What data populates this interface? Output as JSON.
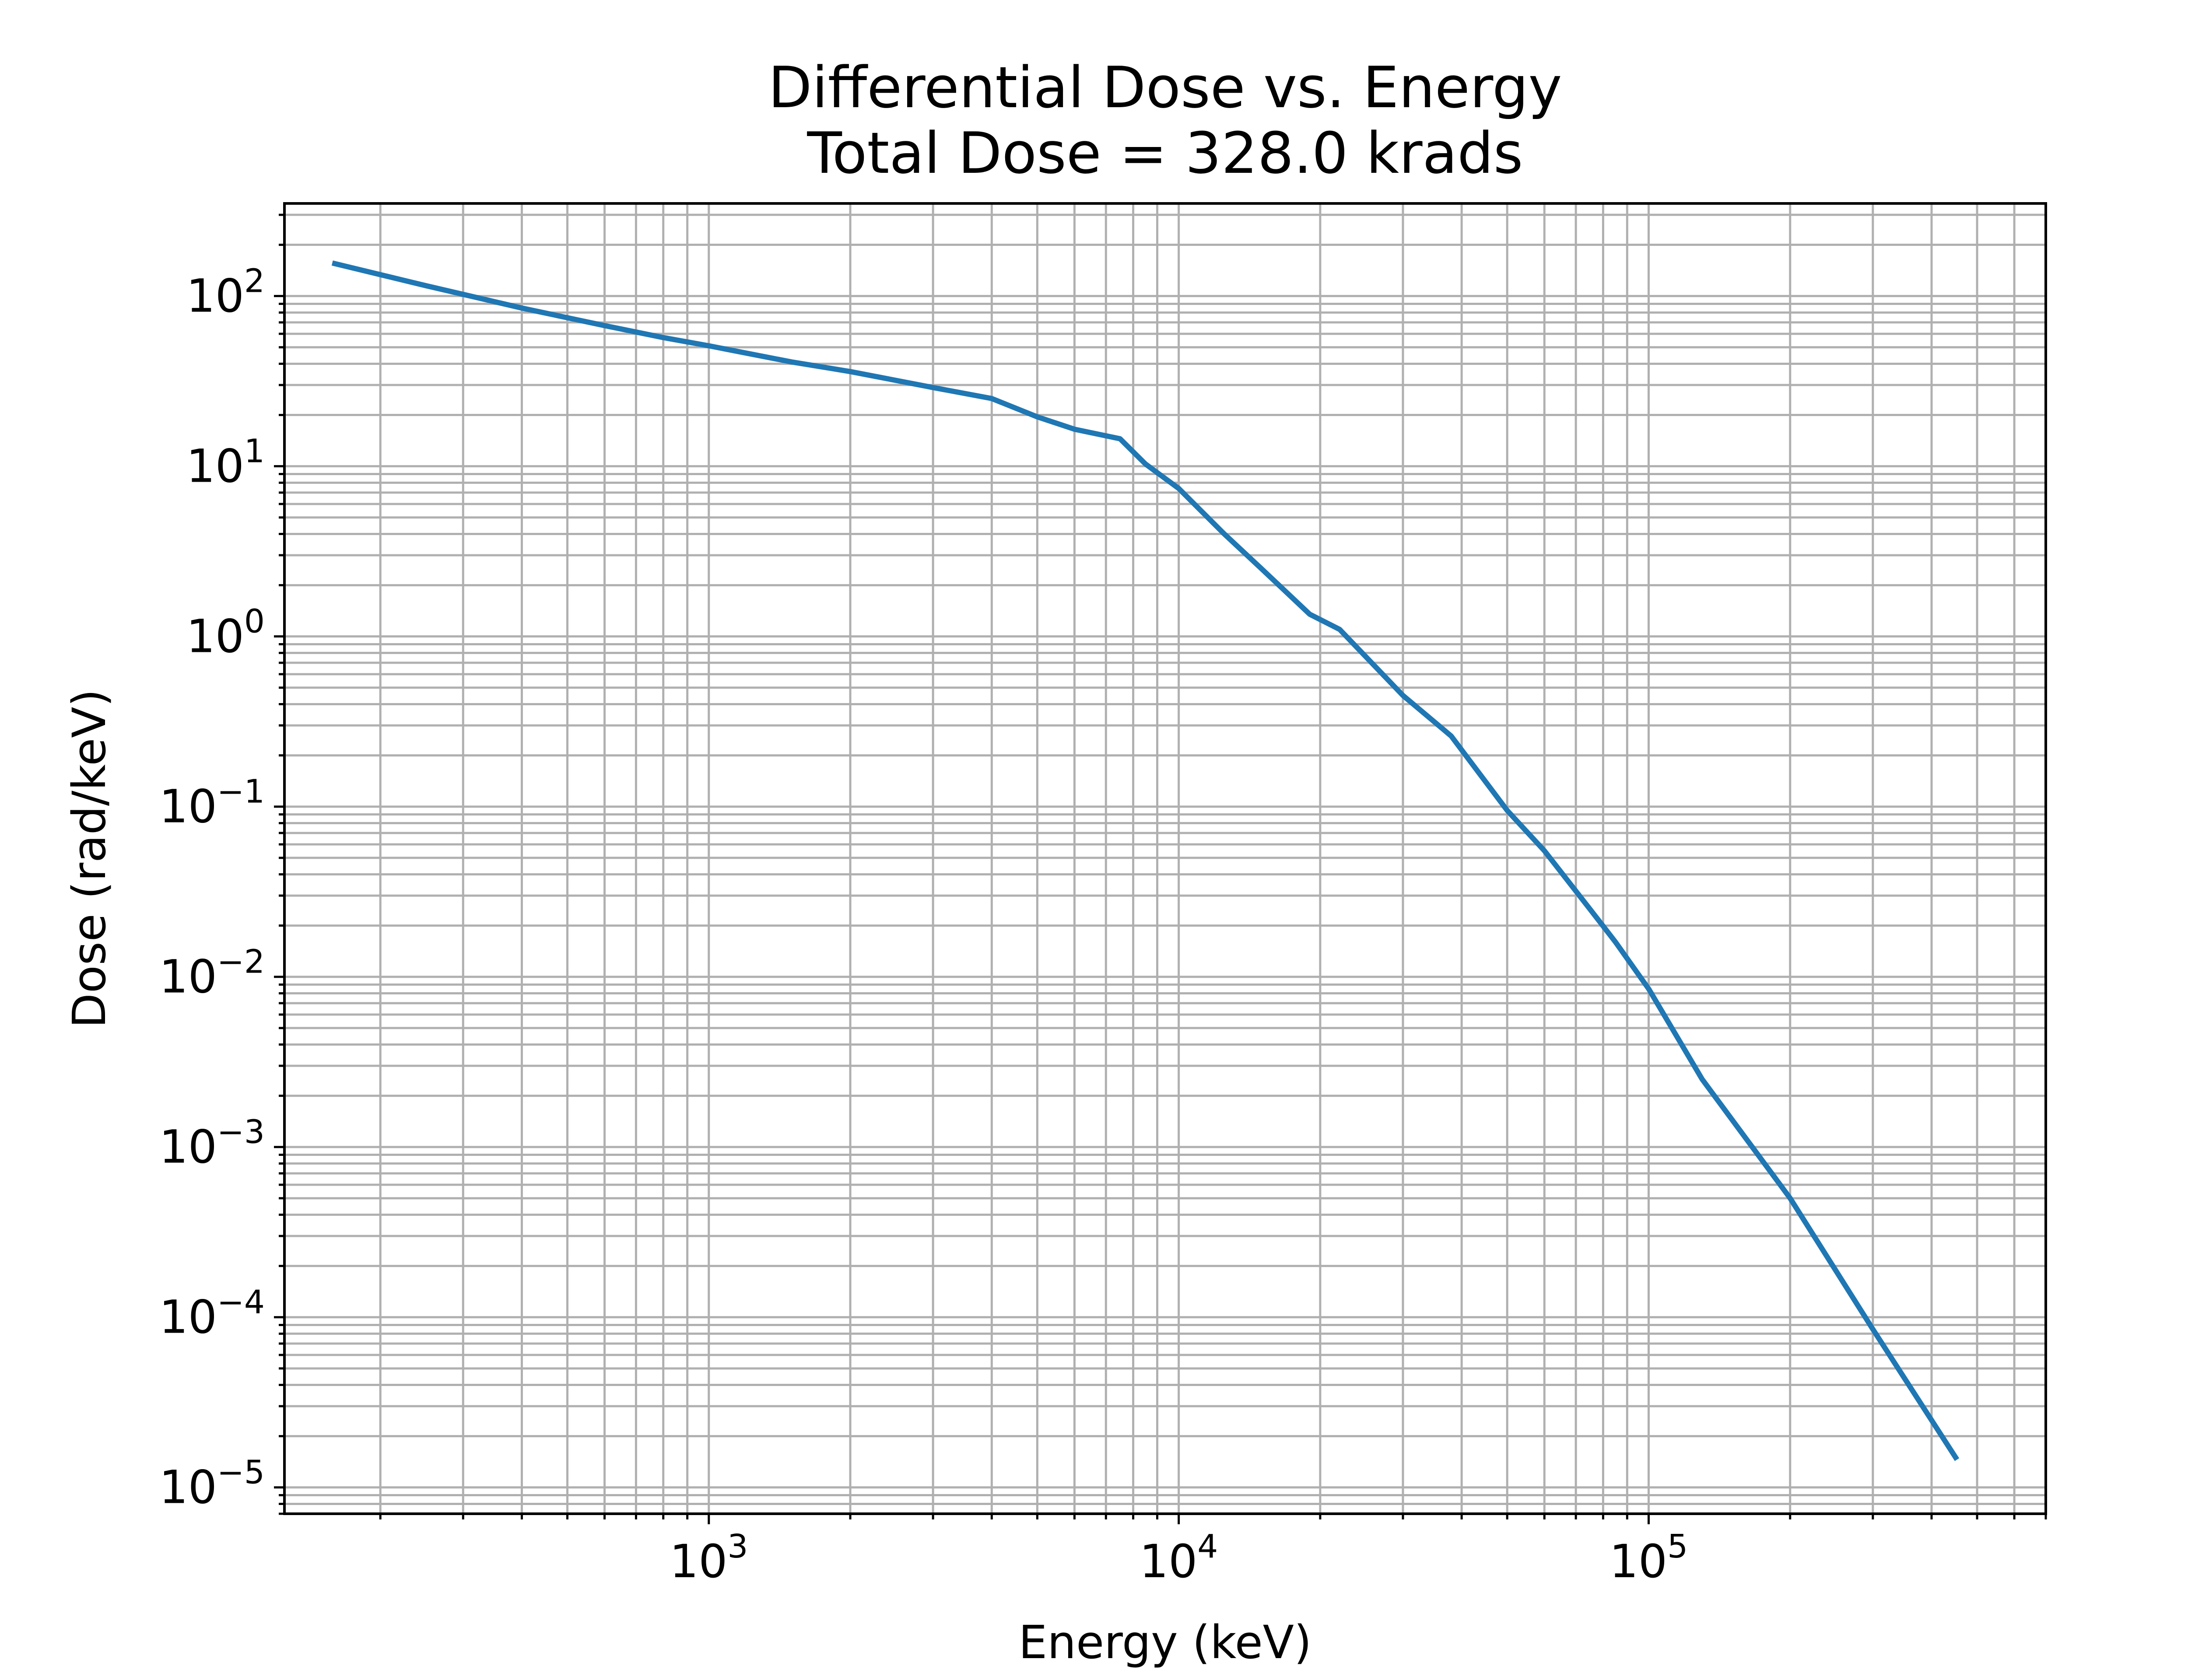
{
  "chart_data": {
    "type": "line",
    "title": "Differential Dose vs. Energy",
    "subtitle": "Total Dose = 328.0 krads",
    "xlabel": "Energy (keV)",
    "ylabel": "Dose (rad/keV)",
    "xscale": "log",
    "yscale": "log",
    "xlim": [
      125,
      700000
    ],
    "ylim": [
      7e-06,
      350
    ],
    "grid": true,
    "grid_minor": true,
    "x_ticks": [
      {
        "base": "10",
        "exp": "3",
        "value": 1000
      },
      {
        "base": "10",
        "exp": "4",
        "value": 10000
      },
      {
        "base": "10",
        "exp": "5",
        "value": 100000
      }
    ],
    "y_ticks": [
      {
        "base": "10",
        "exp": "2",
        "value": 100
      },
      {
        "base": "10",
        "exp": "1",
        "value": 10
      },
      {
        "base": "10",
        "exp": "0",
        "value": 1
      },
      {
        "base": "10",
        "exp": "−1",
        "value": 0.1
      },
      {
        "base": "10",
        "exp": "−2",
        "value": 0.01
      },
      {
        "base": "10",
        "exp": "−3",
        "value": 0.001
      },
      {
        "base": "10",
        "exp": "−4",
        "value": 0.0001
      },
      {
        "base": "10",
        "exp": "−5",
        "value": 1e-05
      }
    ],
    "series": [
      {
        "color": "#1f77b4",
        "x": [
          160,
          250,
          400,
          600,
          800,
          1000,
          1500,
          2000,
          3000,
          4000,
          5000,
          6000,
          7500,
          8500,
          10000,
          12500,
          15000,
          19000,
          22000,
          30000,
          38000,
          50000,
          60000,
          75000,
          85000,
          100000,
          130000,
          200000,
          300000,
          450000
        ],
        "y": [
          155,
          115,
          85,
          67,
          57,
          51,
          41,
          36,
          29,
          25,
          19.5,
          16.5,
          14.5,
          10.3,
          7.4,
          4.0,
          2.5,
          1.35,
          1.1,
          0.45,
          0.26,
          0.095,
          0.055,
          0.025,
          0.016,
          0.0085,
          0.0025,
          0.0005,
          8.5e-05,
          1.5e-05
        ]
      }
    ]
  }
}
